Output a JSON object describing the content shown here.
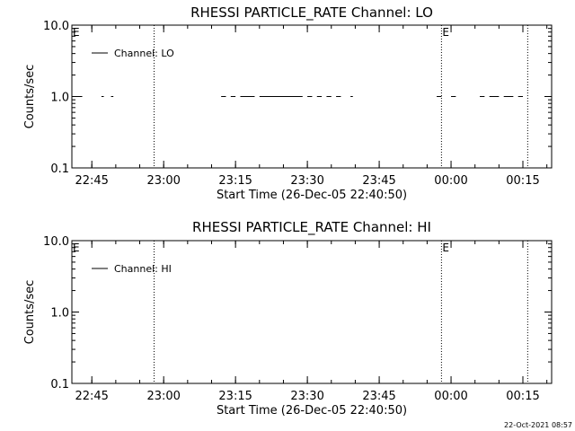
{
  "footer_timestamp": "22-Oct-2021 08:57",
  "chart_data": [
    {
      "type": "line",
      "title": "RHESSI PARTICLE_RATE Channel: LO",
      "xlabel": "Start Time (26-Dec-05 22:40:50)",
      "ylabel": "Counts/sec",
      "y_scale": "log",
      "ylim": [
        0.1,
        10.0
      ],
      "y_ticks": [
        "0.1",
        "1.0",
        "10.0"
      ],
      "xlim": [
        "22:40:50",
        "00:21:00"
      ],
      "x_ticks": [
        "22:45",
        "23:00",
        "23:15",
        "23:30",
        "23:45",
        "00:00",
        "00:15"
      ],
      "legend": {
        "label": "Channel: LO",
        "position": "top-left"
      },
      "vertical_markers": [
        {
          "time": "22:58",
          "label": ""
        },
        {
          "time": "23:58",
          "label": "E"
        },
        {
          "time": "00:16",
          "label": ""
        }
      ],
      "start_marker_label": "E",
      "series": [
        {
          "name": "Channel: LO",
          "value": 1.0,
          "segments": [
            [
              "22:42",
              "22:43"
            ],
            [
              "22:47",
              "22:47:30"
            ],
            [
              "22:49",
              "22:49:30"
            ],
            [
              "23:12",
              "23:13"
            ],
            [
              "23:14",
              "23:15"
            ],
            [
              "23:16",
              "23:19"
            ],
            [
              "23:20",
              "23:29"
            ],
            [
              "23:30",
              "23:31"
            ],
            [
              "23:32",
              "23:33"
            ],
            [
              "23:34",
              "23:35"
            ],
            [
              "23:36",
              "23:37"
            ],
            [
              "23:39",
              "23:39:30"
            ],
            [
              "23:57",
              "23:58"
            ],
            [
              "00:00",
              "00:01"
            ],
            [
              "00:06",
              "00:07"
            ],
            [
              "00:08",
              "00:10"
            ],
            [
              "00:11",
              "00:13"
            ],
            [
              "00:14",
              "00:15"
            ]
          ]
        }
      ]
    },
    {
      "type": "line",
      "title": "RHESSI PARTICLE_RATE Channel: HI",
      "xlabel": "Start Time (26-Dec-05 22:40:50)",
      "ylabel": "Counts/sec",
      "y_scale": "log",
      "ylim": [
        0.1,
        10.0
      ],
      "y_ticks": [
        "0.1",
        "1.0",
        "10.0"
      ],
      "xlim": [
        "22:40:50",
        "00:21:00"
      ],
      "x_ticks": [
        "22:45",
        "23:00",
        "23:15",
        "23:30",
        "23:45",
        "00:00",
        "00:15"
      ],
      "legend": {
        "label": "Channel: HI",
        "position": "top-left"
      },
      "vertical_markers": [
        {
          "time": "22:58",
          "label": ""
        },
        {
          "time": "23:58",
          "label": "E"
        },
        {
          "time": "00:16",
          "label": ""
        }
      ],
      "start_marker_label": "E",
      "series": [
        {
          "name": "Channel: HI",
          "value": 1.0,
          "segments": []
        }
      ]
    }
  ]
}
